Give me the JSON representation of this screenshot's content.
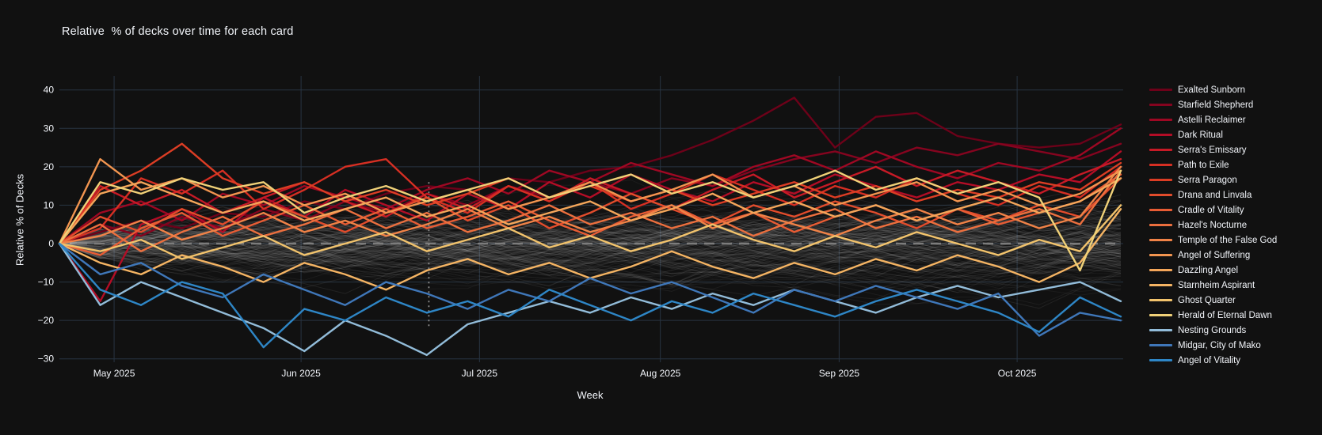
{
  "colors": {
    "background": "#111111",
    "grid": "#283442",
    "text": "#f2f5fa",
    "zero_line": "#7c7c7c",
    "spike_line": "#9a9a9a"
  },
  "chart_data": {
    "type": "line",
    "title": "Relative  % of decks over time for each card",
    "xlabel": "Week",
    "ylabel": "Relative % of Decks",
    "ylim": [
      -33,
      43
    ],
    "x_weeks": 27,
    "grid": true,
    "legend_position": "right",
    "x_ticks": [
      {
        "label": "May 2025",
        "week": 1.34
      },
      {
        "label": "Jun 2025",
        "week": 5.92
      },
      {
        "label": "Jul 2025",
        "week": 10.29
      },
      {
        "label": "Aug 2025",
        "week": 14.72
      },
      {
        "label": "Sep 2025",
        "week": 19.1
      },
      {
        "label": "Oct 2025",
        "week": 23.46
      }
    ],
    "y_ticks": [
      40,
      30,
      20,
      10,
      0,
      -10,
      -20,
      -30
    ],
    "zero_line": {
      "y": 0,
      "style": "dashed"
    },
    "spike_line": {
      "week": 9.05,
      "y_from": 16,
      "y_to": -22,
      "style": "dotted"
    },
    "background_series": {
      "count": 175,
      "opacity": 0.07,
      "color": "#d8d8d8",
      "seed": 11,
      "note": "unlabeled card lines"
    },
    "series": [
      {
        "name": "Exalted Sunborn",
        "color": "#6d0119",
        "values": [
          0,
          3,
          6,
          4,
          8,
          7,
          11,
          9,
          13,
          15,
          14,
          17,
          16,
          19,
          20,
          23,
          27,
          32,
          38,
          25,
          33,
          34,
          28,
          26,
          25,
          26,
          31
        ]
      },
      {
        "name": "Starfield Shepherd",
        "color": "#85041f",
        "values": [
          0,
          5,
          2,
          7,
          4,
          9,
          6,
          11,
          8,
          13,
          10,
          15,
          12,
          16,
          13,
          17,
          15,
          19,
          22,
          24,
          21,
          25,
          23,
          26,
          24,
          22,
          26
        ]
      },
      {
        "name": "Astelli Reclaimer",
        "color": "#9e0823",
        "values": [
          0,
          8,
          11,
          6,
          13,
          10,
          15,
          12,
          9,
          14,
          17,
          13,
          19,
          16,
          21,
          18,
          15,
          20,
          23,
          19,
          24,
          20,
          17,
          21,
          19,
          23,
          30
        ]
      },
      {
        "name": "Dark Ritual",
        "color": "#b30d26",
        "values": [
          0,
          -15,
          5,
          9,
          3,
          12,
          7,
          14,
          10,
          6,
          13,
          9,
          16,
          12,
          18,
          14,
          11,
          16,
          13,
          18,
          15,
          12,
          16,
          14,
          18,
          16,
          24
        ]
      },
      {
        "name": "Serra's Emissary",
        "color": "#c61a26",
        "values": [
          0,
          15,
          10,
          14,
          8,
          12,
          16,
          11,
          7,
          13,
          9,
          15,
          11,
          17,
          13,
          9,
          14,
          18,
          12,
          16,
          20,
          15,
          19,
          16,
          13,
          18,
          22
        ]
      },
      {
        "name": "Path to Exile",
        "color": "#d62f23",
        "values": [
          0,
          4,
          17,
          13,
          19,
          9,
          14,
          20,
          22,
          12,
          8,
          15,
          11,
          16,
          9,
          13,
          18,
          14,
          10,
          15,
          12,
          17,
          13,
          10,
          15,
          12,
          20
        ]
      },
      {
        "name": "Serra Paragon",
        "color": "#dc3d24",
        "values": [
          0,
          14,
          19,
          26,
          17,
          13,
          16,
          11,
          14,
          10,
          13,
          17,
          12,
          15,
          11,
          14,
          10,
          13,
          16,
          12,
          15,
          11,
          14,
          12,
          16,
          14,
          21
        ]
      },
      {
        "name": "Drana and Linvala",
        "color": "#e24c2c",
        "values": [
          0,
          7,
          3,
          9,
          5,
          11,
          7,
          3,
          8,
          12,
          6,
          10,
          4,
          8,
          13,
          9,
          5,
          10,
          7,
          11,
          8,
          4,
          9,
          6,
          10,
          7,
          17
        ]
      },
      {
        "name": "Cradle of Vitality",
        "color": "#e85c34",
        "values": [
          0,
          -3,
          4,
          8,
          2,
          6,
          10,
          5,
          9,
          4,
          7,
          11,
          6,
          2,
          7,
          10,
          5,
          8,
          3,
          7,
          10,
          6,
          9,
          5,
          8,
          11,
          18
        ]
      },
      {
        "name": "Hazel's Nocturne",
        "color": "#ec6f3e",
        "values": [
          0,
          5,
          -2,
          3,
          7,
          2,
          5,
          9,
          4,
          8,
          3,
          6,
          10,
          5,
          8,
          4,
          7,
          2,
          6,
          9,
          4,
          7,
          3,
          6,
          9,
          5,
          19
        ]
      },
      {
        "name": "Temple of the False God",
        "color": "#f08247",
        "values": [
          0,
          2,
          6,
          1,
          4,
          8,
          3,
          6,
          2,
          5,
          9,
          4,
          7,
          3,
          6,
          10,
          4,
          8,
          5,
          2,
          6,
          9,
          5,
          8,
          4,
          7,
          20
        ]
      },
      {
        "name": "Angel of Suffering",
        "color": "#f29550",
        "values": [
          0,
          22,
          14,
          17,
          12,
          15,
          10,
          13,
          8,
          11,
          14,
          9,
          12,
          16,
          11,
          14,
          18,
          12,
          15,
          10,
          13,
          16,
          11,
          14,
          10,
          13,
          19
        ]
      },
      {
        "name": "Dazzling Angel",
        "color": "#f4a65a",
        "values": [
          0,
          13,
          16,
          12,
          8,
          11,
          6,
          9,
          12,
          7,
          10,
          5,
          8,
          11,
          6,
          9,
          13,
          8,
          11,
          7,
          10,
          6,
          9,
          12,
          8,
          11,
          17
        ]
      },
      {
        "name": "Starnheim Aspirant",
        "color": "#f5b463",
        "values": [
          0,
          -5,
          -8,
          -3,
          -6,
          -10,
          -5,
          -8,
          -12,
          -7,
          -4,
          -8,
          -5,
          -9,
          -6,
          -2,
          -6,
          -9,
          -5,
          -8,
          -4,
          -7,
          -3,
          -6,
          -10,
          -5,
          9
        ]
      },
      {
        "name": "Ghost Quarter",
        "color": "#f2c36c",
        "values": [
          0,
          -2,
          1,
          -4,
          -1,
          2,
          -3,
          0,
          3,
          -2,
          1,
          4,
          -1,
          2,
          -2,
          1,
          5,
          1,
          -2,
          2,
          -1,
          3,
          0,
          -3,
          1,
          -2,
          10
        ]
      },
      {
        "name": "Herald of Eternal Dawn",
        "color": "#f0d178",
        "values": [
          0,
          16,
          13,
          17,
          14,
          16,
          8,
          12,
          15,
          11,
          14,
          17,
          12,
          15,
          18,
          13,
          16,
          12,
          15,
          19,
          14,
          17,
          13,
          16,
          12,
          -7,
          19
        ]
      },
      {
        "name": "Nesting Grounds",
        "color": "#92bcd9",
        "values": [
          0,
          -16,
          -10,
          -14,
          -18,
          -22,
          -28,
          -20,
          -24,
          -29,
          -21,
          -18,
          -15,
          -18,
          -14,
          -17,
          -13,
          -16,
          -12,
          -15,
          -18,
          -14,
          -11,
          -14,
          -12,
          -10,
          -15
        ]
      },
      {
        "name": "Midgar, City of Mako",
        "color": "#3f77b9",
        "values": [
          0,
          -8,
          -5,
          -11,
          -14,
          -8,
          -12,
          -16,
          -10,
          -13,
          -17,
          -12,
          -15,
          -9,
          -13,
          -10,
          -14,
          -18,
          -12,
          -15,
          -11,
          -14,
          -17,
          -13,
          -24,
          -18,
          -20
        ]
      },
      {
        "name": "Angel of Vitality",
        "color": "#2e86c6",
        "values": [
          0,
          -12,
          -16,
          -10,
          -13,
          -27,
          -17,
          -20,
          -14,
          -18,
          -15,
          -19,
          -12,
          -16,
          -20,
          -15,
          -18,
          -13,
          -16,
          -19,
          -15,
          -12,
          -15,
          -18,
          -23,
          -14,
          -19
        ]
      }
    ]
  }
}
